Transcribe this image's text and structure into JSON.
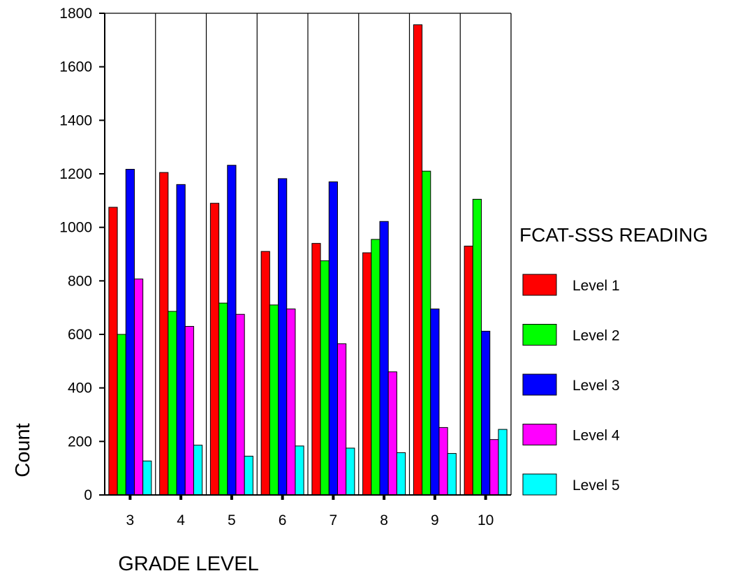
{
  "chart_data": {
    "type": "bar",
    "title": "",
    "xlabel": "GRADE LEVEL",
    "ylabel": "Count",
    "legend_title": "FCAT-SSS READING",
    "legend_position": "right",
    "grid": false,
    "ylim": [
      0,
      1800
    ],
    "yticks": [
      0,
      200,
      400,
      600,
      800,
      1000,
      1200,
      1400,
      1600,
      1800
    ],
    "categories": [
      "3",
      "4",
      "5",
      "6",
      "7",
      "8",
      "9",
      "10"
    ],
    "series": [
      {
        "name": "Level 1",
        "color": "#ff0000",
        "values": [
          1075,
          1205,
          1090,
          910,
          940,
          905,
          1757,
          930
        ]
      },
      {
        "name": "Level 2",
        "color": "#00ff00",
        "values": [
          600,
          686,
          717,
          710,
          875,
          955,
          1210,
          1105
        ]
      },
      {
        "name": "Level 3",
        "color": "#0000ff",
        "values": [
          1217,
          1160,
          1232,
          1182,
          1170,
          1022,
          695,
          612
        ]
      },
      {
        "name": "Level 4",
        "color": "#ff00ff",
        "values": [
          807,
          630,
          675,
          695,
          565,
          460,
          252,
          207
        ]
      },
      {
        "name": "Level 5",
        "color": "#00ffff",
        "values": [
          127,
          186,
          145,
          183,
          175,
          158,
          155,
          245
        ]
      }
    ]
  }
}
